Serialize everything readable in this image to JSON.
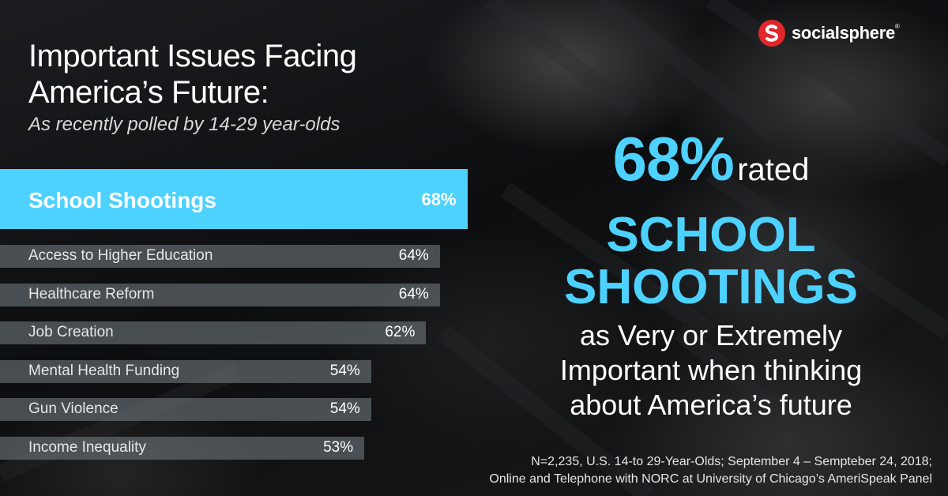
{
  "brand": {
    "name": "socialsphere",
    "registered_mark": "®",
    "accent": "#e3262b"
  },
  "colors": {
    "highlight": "#4dd2ff",
    "bar": "#78828799",
    "text": "#ffffff"
  },
  "headline": {
    "title_line1": "Important Issues Facing",
    "title_line2": "America’s Future:",
    "subtitle": "As recently polled by 14-29 year-olds"
  },
  "chart_data": {
    "type": "bar",
    "orientation": "horizontal",
    "title": "Important Issues Facing America’s Future:",
    "subtitle": "As recently polled by 14-29 year-olds",
    "categories": [
      "School Shootings",
      "Access to Higher Education",
      "Healthcare Reform",
      "Job Creation",
      "Mental Health Funding",
      "Gun Violence",
      "Income Inequality"
    ],
    "values": [
      68,
      64,
      64,
      62,
      54,
      54,
      53
    ],
    "value_labels": [
      "68%",
      "64%",
      "64%",
      "62%",
      "54%",
      "54%",
      "53%"
    ],
    "highlighted_index": 0,
    "unit": "%"
  },
  "callout": {
    "percent": "68%",
    "rated": "rated",
    "line2": "SCHOOL",
    "line3": "SHOOTINGS",
    "line4": "as Very or Extremely",
    "line5": "Important when thinking",
    "line6": "about America’s future"
  },
  "footnote": {
    "line1": "N=2,235, U.S. 14-to 29-Year-Olds; September 4 – Sempteber 24, 2018;",
    "line2": "Online and Telephone with NORC at University of Chicago’s AmeriSpeak Panel"
  }
}
